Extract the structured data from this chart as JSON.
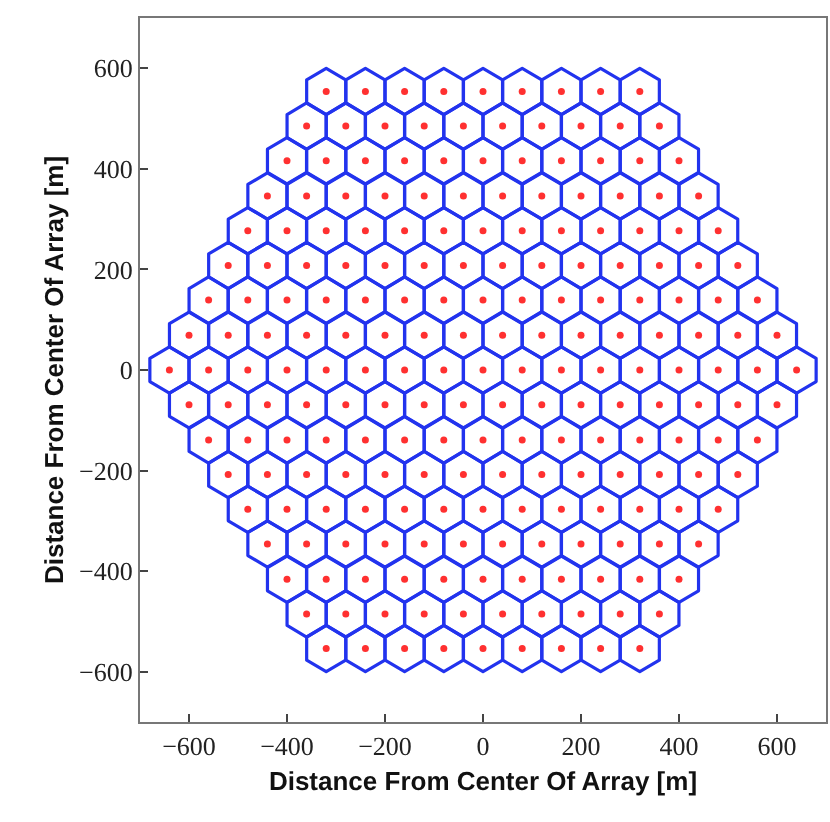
{
  "chart_data": {
    "type": "scatter",
    "xlabel": "Distance From Center Of Array [m]",
    "ylabel": "Distance From Center Of Array [m]",
    "xlim": [
      -700,
      700
    ],
    "ylim": [
      -700,
      700
    ],
    "xticks": [
      -600,
      -400,
      -200,
      0,
      200,
      400,
      600
    ],
    "yticks": [
      -600,
      -400,
      -200,
      0,
      200,
      400,
      600
    ],
    "grid": false,
    "legend": false,
    "marker": "circle",
    "x": [
      -320,
      -240,
      -160,
      -80,
      0,
      80,
      160,
      240,
      320,
      -360,
      -280,
      -200,
      -120,
      -40,
      40,
      120,
      200,
      280,
      360,
      -400,
      -320,
      -240,
      -160,
      -80,
      0,
      80,
      160,
      240,
      320,
      400,
      -440,
      -360,
      -280,
      -200,
      -120,
      -40,
      40,
      120,
      200,
      280,
      360,
      440,
      -480,
      -400,
      -320,
      -240,
      -160,
      -80,
      0,
      80,
      160,
      240,
      320,
      400,
      480,
      -520,
      -440,
      -360,
      -280,
      -200,
      -120,
      -40,
      40,
      120,
      200,
      280,
      360,
      440,
      520,
      -560,
      -480,
      -400,
      -320,
      -240,
      -160,
      -80,
      0,
      80,
      160,
      240,
      320,
      400,
      480,
      560,
      -600,
      -520,
      -440,
      -360,
      -280,
      -200,
      -120,
      -40,
      40,
      120,
      200,
      280,
      360,
      440,
      520,
      600,
      -640,
      -560,
      -480,
      -400,
      -320,
      -240,
      -160,
      -80,
      0,
      80,
      160,
      240,
      320,
      400,
      480,
      560,
      640,
      -600,
      -520,
      -440,
      -360,
      -280,
      -200,
      -120,
      -40,
      40,
      120,
      200,
      280,
      360,
      440,
      520,
      600,
      -560,
      -480,
      -400,
      -320,
      -240,
      -160,
      -80,
      0,
      80,
      160,
      240,
      320,
      400,
      480,
      560,
      -520,
      -440,
      -360,
      -280,
      -200,
      -120,
      -40,
      40,
      120,
      200,
      280,
      360,
      440,
      520,
      -480,
      -400,
      -320,
      -240,
      -160,
      -80,
      0,
      80,
      160,
      240,
      320,
      400,
      480,
      -440,
      -360,
      -280,
      -200,
      -120,
      -40,
      40,
      120,
      200,
      280,
      360,
      440,
      -400,
      -320,
      -240,
      -160,
      -80,
      0,
      80,
      160,
      240,
      320,
      400,
      -360,
      -280,
      -200,
      -120,
      -40,
      40,
      120,
      200,
      280,
      360,
      -320,
      -240,
      -160,
      -80,
      0,
      80,
      160,
      240,
      320
    ],
    "series": [
      {
        "color": "#ff3030",
        "values": [
          554,
          554,
          554,
          554,
          554,
          554,
          554,
          554,
          554,
          485,
          485,
          485,
          485,
          485,
          485,
          485,
          485,
          485,
          485,
          416,
          416,
          416,
          416,
          416,
          416,
          416,
          416,
          416,
          416,
          416,
          346,
          346,
          346,
          346,
          346,
          346,
          346,
          346,
          346,
          346,
          346,
          346,
          277,
          277,
          277,
          277,
          277,
          277,
          277,
          277,
          277,
          277,
          277,
          277,
          277,
          208,
          208,
          208,
          208,
          208,
          208,
          208,
          208,
          208,
          208,
          208,
          208,
          208,
          208,
          139,
          139,
          139,
          139,
          139,
          139,
          139,
          139,
          139,
          139,
          139,
          139,
          139,
          139,
          139,
          69,
          69,
          69,
          69,
          69,
          69,
          69,
          69,
          69,
          69,
          69,
          69,
          69,
          69,
          69,
          69,
          0,
          0,
          0,
          0,
          0,
          0,
          0,
          0,
          0,
          0,
          0,
          0,
          0,
          0,
          0,
          0,
          0,
          -69,
          -69,
          -69,
          -69,
          -69,
          -69,
          -69,
          -69,
          -69,
          -69,
          -69,
          -69,
          -69,
          -69,
          -69,
          -69,
          -139,
          -139,
          -139,
          -139,
          -139,
          -139,
          -139,
          -139,
          -139,
          -139,
          -139,
          -139,
          -139,
          -139,
          -139,
          -208,
          -208,
          -208,
          -208,
          -208,
          -208,
          -208,
          -208,
          -208,
          -208,
          -208,
          -208,
          -208,
          -208,
          -277,
          -277,
          -277,
          -277,
          -277,
          -277,
          -277,
          -277,
          -277,
          -277,
          -277,
          -277,
          -277,
          -346,
          -346,
          -346,
          -346,
          -346,
          -346,
          -346,
          -346,
          -346,
          -346,
          -346,
          -346,
          -416,
          -416,
          -416,
          -416,
          -416,
          -416,
          -416,
          -416,
          -416,
          -416,
          -416,
          -485,
          -485,
          -485,
          -485,
          -485,
          -485,
          -485,
          -485,
          -485,
          -485,
          -554,
          -554,
          -554,
          -554,
          -554,
          -554,
          -554,
          -554,
          -554
        ]
      }
    ]
  }
}
